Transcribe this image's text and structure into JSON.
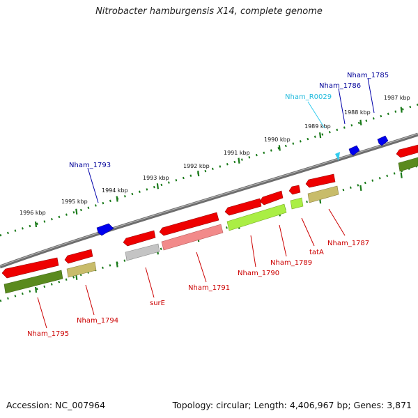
{
  "title": "Nitrobacter hamburgensis X14, complete genome",
  "footer": {
    "accession": "Accession: NC_007964",
    "stats": "Topology: circular; Length: 4,406,967 bp; Genes: 3,871"
  },
  "scale_labels": [
    {
      "id": "tick-1996",
      "text": "1996 kbp"
    },
    {
      "id": "tick-1995",
      "text": "1995 kbp"
    },
    {
      "id": "tick-1994",
      "text": "1994 kbp"
    },
    {
      "id": "tick-1993",
      "text": "1993 kbp"
    },
    {
      "id": "tick-1992",
      "text": "1992 kbp"
    },
    {
      "id": "tick-1991",
      "text": "1991 kbp"
    },
    {
      "id": "tick-1990",
      "text": "1990 kbp"
    },
    {
      "id": "tick-1989",
      "text": "1989 kbp"
    },
    {
      "id": "tick-1988",
      "text": "1988 kbp"
    },
    {
      "id": "tick-1987",
      "text": "1987 kbp"
    }
  ],
  "labels": {
    "forward": [
      "Nham_1793",
      "Nham_R0029",
      "Nham_1786",
      "Nham_1785"
    ],
    "reverse": [
      "Nham_1795",
      "Nham_1794",
      "surE",
      "Nham_1791",
      "Nham_1790",
      "Nham_1789",
      "tatA",
      "Nham_1787"
    ]
  },
  "colors": {
    "forward_cds": "#0000ff",
    "forward_rna": "#33ccee",
    "reverse_cds": "#ee0000",
    "reverse_label": "#cc0000",
    "forward_label": "#000099",
    "rna_label": "#22bbdd",
    "backbone": "#777777",
    "scale": "#1a7a1a"
  }
}
